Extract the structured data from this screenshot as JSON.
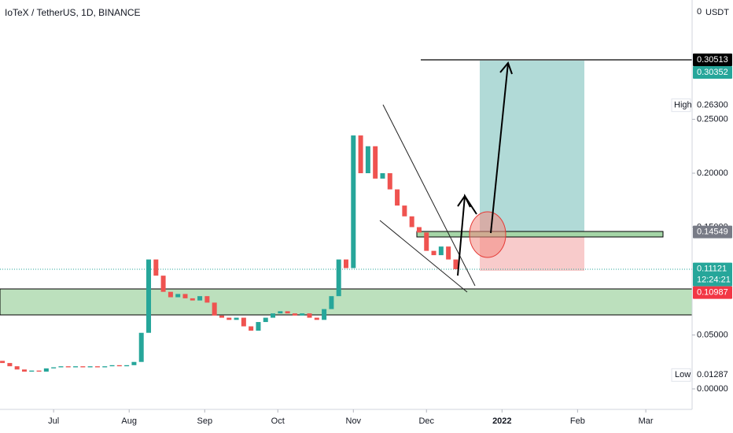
{
  "chart_data": {
    "type": "candlestick",
    "title": "IoTeX / TetherUS, 1D, BINANCE",
    "x": [
      -21,
      -18,
      -15,
      -12,
      -9,
      -6,
      -3,
      0,
      3,
      6,
      9,
      12,
      15,
      18,
      21,
      24,
      27,
      30,
      33,
      36,
      39,
      42,
      45,
      48,
      51,
      54,
      57,
      60,
      63,
      66,
      69,
      72,
      75,
      78,
      81,
      84,
      87,
      90,
      93,
      96,
      99,
      102,
      105,
      108,
      111,
      114,
      117,
      120,
      123,
      126,
      129,
      132,
      135,
      138,
      141,
      144,
      147,
      150,
      153,
      156,
      159,
      162,
      165
    ],
    "open": [
      0.026,
      0.024,
      0.021,
      0.018,
      0.016,
      0.017,
      0.016,
      0.019,
      0.02,
      0.021,
      0.02,
      0.021,
      0.02,
      0.021,
      0.02,
      0.021,
      0.022,
      0.021,
      0.022,
      0.025,
      0.052,
      0.12,
      0.105,
      0.09,
      0.085,
      0.088,
      0.084,
      0.082,
      0.086,
      0.08,
      0.068,
      0.066,
      0.064,
      0.066,
      0.058,
      0.054,
      0.062,
      0.066,
      0.07,
      0.072,
      0.07,
      0.068,
      0.07,
      0.066,
      0.064,
      0.074,
      0.086,
      0.12,
      0.112,
      0.235,
      0.2,
      0.225,
      0.195,
      0.2,
      0.185,
      0.17,
      0.16,
      0.15,
      0.145,
      0.128,
      0.124,
      0.132,
      0.12
    ],
    "high": {
      "label": "High",
      "value": 0.263,
      "value_label": "0.26300"
    },
    "low": {
      "label": "Low",
      "value": 0.01287
    },
    "close": [
      0.024,
      0.021,
      0.018,
      0.016,
      0.017,
      0.016,
      0.019,
      0.02,
      0.021,
      0.02,
      0.021,
      0.02,
      0.021,
      0.02,
      0.021,
      0.022,
      0.021,
      0.022,
      0.025,
      0.052,
      0.12,
      0.105,
      0.09,
      0.085,
      0.088,
      0.084,
      0.082,
      0.086,
      0.08,
      0.068,
      0.066,
      0.064,
      0.066,
      0.058,
      0.054,
      0.062,
      0.066,
      0.07,
      0.072,
      0.07,
      0.068,
      0.07,
      0.066,
      0.064,
      0.074,
      0.086,
      0.12,
      0.112,
      0.235,
      0.2,
      0.225,
      0.195,
      0.2,
      0.185,
      0.17,
      0.16,
      0.15,
      0.145,
      0.128,
      0.124,
      0.132,
      0.12,
      0.111
    ],
    "up_color": "#26a69a",
    "down_color": "#ef5350",
    "xlim": [
      -22,
      262
    ],
    "xticks": [
      {
        "value": 0,
        "label": "Jul"
      },
      {
        "value": 31,
        "label": "Aug"
      },
      {
        "value": 62,
        "label": "Sep"
      },
      {
        "value": 92,
        "label": "Oct"
      },
      {
        "value": 123,
        "label": "Nov"
      },
      {
        "value": 153,
        "label": "Dec"
      },
      {
        "value": 184,
        "label": "2022"
      },
      {
        "value": 215,
        "label": "Feb"
      },
      {
        "value": 243,
        "label": "Mar"
      }
    ],
    "ylim": [
      -0.019,
      0.3606
    ],
    "yticks": [
      {
        "value": 0.25,
        "label": "0.25000"
      },
      {
        "value": 0.2,
        "label": "0.20000"
      },
      {
        "value": 0.15,
        "label": "0.15000"
      },
      {
        "value": 0.05,
        "label": "0.05000"
      },
      {
        "value": 0,
        "label": "0.00000"
      }
    ],
    "axis_top_label": "0",
    "currency": "USDT",
    "markers": [
      {
        "value": 0.30513,
        "color": "#000000"
      },
      {
        "value": 0.30352,
        "color": "#26a69a"
      },
      {
        "value": 0.14549,
        "color": "#787b86"
      },
      {
        "value": 0.11121,
        "color": "#26a69a",
        "countdown": "12:24:21"
      },
      {
        "value": 0.10987,
        "color": "#f23645"
      }
    ]
  }
}
